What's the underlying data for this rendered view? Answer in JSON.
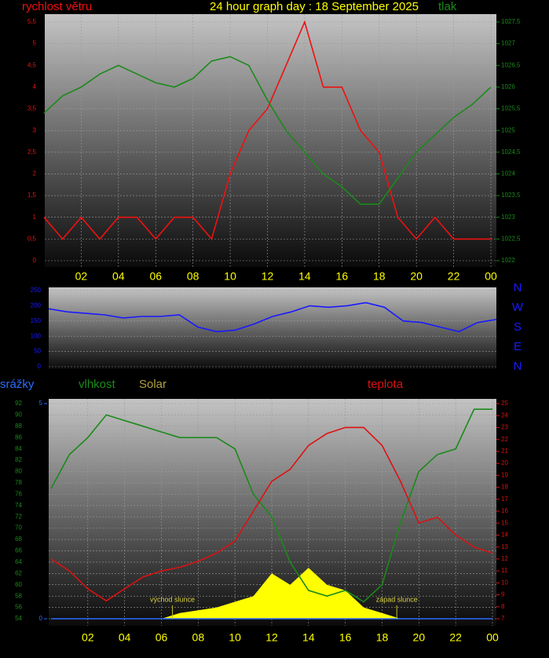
{
  "chart_data": [
    {
      "type": "line",
      "title": "24 hour graph day : 18 September 2025",
      "x": [
        0,
        1,
        2,
        3,
        4,
        5,
        6,
        7,
        8,
        9,
        10,
        11,
        12,
        13,
        14,
        15,
        16,
        17,
        18,
        19,
        20,
        21,
        22,
        23,
        24
      ],
      "series": [
        {
          "name": "rychlost větru",
          "color": "#ee1111",
          "axis": "y",
          "values": [
            1,
            0.5,
            1,
            0.5,
            1,
            1,
            0.5,
            1,
            1,
            0.5,
            2,
            3,
            3.5,
            4.5,
            5.5,
            4,
            4,
            3,
            2.5,
            1,
            0.5,
            1,
            0.5,
            0.5,
            0.5
          ]
        },
        {
          "name": "tlak",
          "color": "#1a8a1a",
          "axis": "y2",
          "values": [
            1025.4,
            1025.8,
            1026.0,
            1026.3,
            1026.5,
            1026.3,
            1026.1,
            1026.0,
            1026.2,
            1026.6,
            1026.7,
            1026.5,
            1025.7,
            1025.0,
            1024.5,
            1024.0,
            1023.7,
            1023.3,
            1023.3,
            1023.9,
            1024.5,
            1024.9,
            1025.3,
            1025.6,
            1026.0
          ]
        }
      ],
      "xlim": [
        0,
        24
      ],
      "xticks": [
        {
          "value": 2,
          "label": "02"
        },
        {
          "value": 4,
          "label": "04"
        },
        {
          "value": 6,
          "label": "06"
        },
        {
          "value": 8,
          "label": "08"
        },
        10,
        12,
        14,
        16,
        18,
        20,
        22,
        {
          "value": 24,
          "label": "00"
        }
      ],
      "ylim": [
        0,
        5.5
      ],
      "yticks": [
        0,
        {
          "value": 0.5,
          "label": "0,5"
        },
        1,
        {
          "value": 1.5,
          "label": "1,5"
        },
        2,
        {
          "value": 2.5,
          "label": "2,5"
        },
        3,
        {
          "value": 3.5,
          "label": "3,5"
        },
        4,
        {
          "value": 4.5,
          "label": "4,5"
        },
        5,
        {
          "value": 5.5,
          "label": "5,5"
        }
      ],
      "y2lim": [
        1022,
        1027.5
      ],
      "y2ticks": [
        1022,
        {
          "value": 1022.5,
          "label": "1022,5"
        },
        1023,
        {
          "value": 1023.5,
          "label": "1023,5"
        },
        1024,
        {
          "value": 1024.5,
          "label": "1024,5"
        },
        1025,
        {
          "value": 1025.5,
          "label": "1025,5"
        },
        1026,
        {
          "value": 1026.5,
          "label": "1026,5"
        },
        1027,
        {
          "value": 1027.5,
          "label": "1027,5"
        }
      ],
      "grid": true
    },
    {
      "type": "line",
      "x": [
        0,
        1,
        2,
        3,
        4,
        5,
        6,
        7,
        8,
        9,
        10,
        11,
        12,
        13,
        14,
        15,
        16,
        17,
        18,
        19,
        20,
        21,
        22,
        23,
        24
      ],
      "series": [
        {
          "color": "#1a1aff",
          "axis": "y",
          "values": [
            190,
            180,
            175,
            170,
            160,
            165,
            165,
            170,
            130,
            115,
            120,
            140,
            165,
            180,
            200,
            195,
            200,
            210,
            195,
            150,
            145,
            130,
            115,
            145,
            155
          ]
        }
      ],
      "xlim": [
        0,
        24
      ],
      "ylim": [
        0,
        250
      ],
      "yticks": [
        0,
        50,
        100,
        150,
        200,
        250
      ],
      "direction_labels": [
        "N",
        "W",
        "S",
        "E",
        "N"
      ],
      "grid": true
    },
    {
      "type": "line",
      "x": [
        0,
        1,
        2,
        3,
        4,
        5,
        6,
        7,
        8,
        9,
        10,
        11,
        12,
        13,
        14,
        15,
        16,
        17,
        18,
        19,
        20,
        21,
        22,
        23,
        24
      ],
      "series": [
        {
          "name": "srážky",
          "color": "#2a6cff",
          "axis": "y3",
          "values": [
            0,
            0,
            0,
            0,
            0,
            0,
            0,
            0,
            0,
            0,
            0,
            0,
            0,
            0,
            0,
            0,
            0,
            0,
            0,
            0,
            0,
            0,
            0,
            0,
            0
          ]
        },
        {
          "name": "vlhkost",
          "color": "#1a8a1a",
          "axis": "y",
          "values": [
            77,
            83,
            86,
            90,
            89,
            88,
            87,
            86,
            86,
            86,
            84,
            76,
            72,
            64,
            59,
            58,
            59,
            57,
            60,
            71,
            80,
            83,
            84,
            91,
            91
          ]
        },
        {
          "name": "Solar",
          "color": "#ffff00",
          "axis": "y",
          "area": true,
          "values": [
            54,
            54,
            54,
            54,
            54,
            54,
            54,
            55,
            55.5,
            56,
            57,
            58,
            62,
            60,
            63,
            60,
            59,
            56,
            55,
            54,
            54,
            54,
            54,
            54,
            54
          ]
        },
        {
          "name": "teplota",
          "color": "#dd1111",
          "axis": "y2",
          "values": [
            12,
            11,
            9.5,
            8.5,
            9.5,
            10.5,
            11,
            11.3,
            11.8,
            12.5,
            13.5,
            16,
            18.5,
            19.5,
            21.5,
            22.5,
            23,
            23,
            21.5,
            18.5,
            15,
            15.5,
            14,
            13,
            12.5
          ]
        }
      ],
      "xlim": [
        0,
        24
      ],
      "xticks": [
        {
          "value": 2,
          "label": "02"
        },
        {
          "value": 4,
          "label": "04"
        },
        {
          "value": 6,
          "label": "06"
        },
        {
          "value": 8,
          "label": "08"
        },
        10,
        12,
        14,
        16,
        18,
        20,
        22,
        {
          "value": 24,
          "label": "00"
        }
      ],
      "ylim": [
        54,
        92
      ],
      "yticks": [
        54,
        56,
        58,
        60,
        62,
        64,
        66,
        68,
        70,
        72,
        74,
        76,
        78,
        80,
        82,
        84,
        86,
        88,
        90,
        92
      ],
      "y2lim": [
        7,
        25
      ],
      "y2ticks": [
        7,
        8,
        9,
        10,
        11,
        12,
        13,
        14,
        15,
        16,
        17,
        18,
        19,
        20,
        21,
        22,
        23,
        24,
        25
      ],
      "y3lim": [
        0,
        5
      ],
      "y3ticks": [
        0,
        5
      ],
      "annotations": [
        {
          "text": "východ slunce",
          "x": 6.6
        },
        {
          "text": "západ slunce",
          "x": 18.8
        }
      ],
      "grid": true
    }
  ]
}
